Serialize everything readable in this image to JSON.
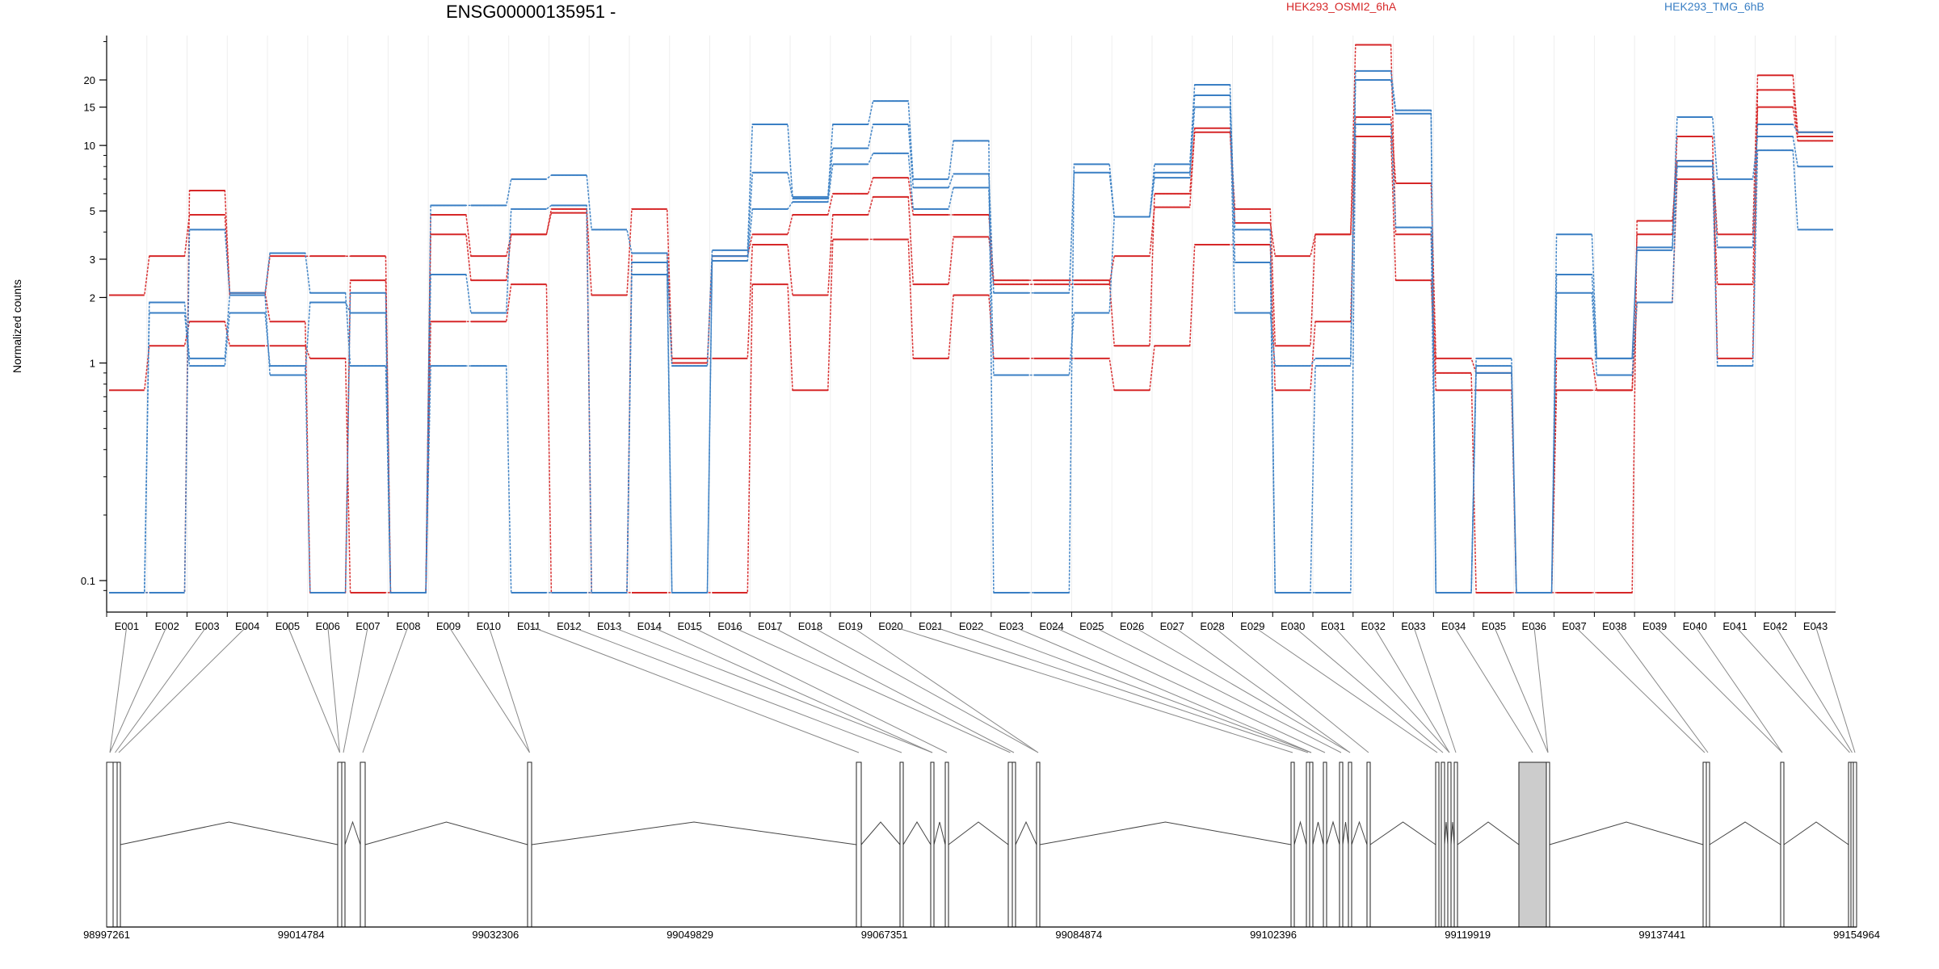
{
  "chart_data": {
    "type": "line",
    "title": "ENSG00000135951 -",
    "ylabel": "Normalized counts",
    "y_scale": "log",
    "ylim": [
      0.085,
      32
    ],
    "y_ticks": [
      {
        "v": 0.1,
        "label": "0.1"
      },
      {
        "v": 1,
        "label": "1"
      },
      {
        "v": 2,
        "label": "2"
      },
      {
        "v": 3,
        "label": "3"
      },
      {
        "v": 5,
        "label": "5"
      },
      {
        "v": 10,
        "label": "10"
      },
      {
        "v": 15,
        "label": "15"
      },
      {
        "v": 20,
        "label": "20"
      }
    ],
    "grid": true,
    "legend_position": "top",
    "groups": [
      {
        "name": "HEK293_OSMI2_6hA",
        "color": "#d62728"
      },
      {
        "name": "HEK293_TMG_6hB",
        "color": "#3a7fc4"
      }
    ],
    "categories": [
      "E001",
      "E002",
      "E003",
      "E004",
      "E005",
      "E006",
      "E007",
      "E008",
      "E009",
      "E010",
      "E011",
      "E012",
      "E013",
      "E014",
      "E015",
      "E016",
      "E017",
      "E018",
      "E019",
      "E020",
      "E021",
      "E022",
      "E023",
      "E024",
      "E025",
      "E026",
      "E027",
      "E028",
      "E029",
      "E030",
      "E031",
      "E032",
      "E033",
      "E034",
      "E035",
      "E036",
      "E037",
      "E038",
      "E039",
      "E040",
      "E041",
      "E042",
      "E043"
    ],
    "series": [
      {
        "group": 0,
        "values": [
          0.75,
          1.2,
          1.55,
          1.2,
          1.2,
          1.05,
          0.088,
          0.088,
          1.55,
          1.55,
          2.3,
          0.088,
          0.088,
          0.088,
          0.088,
          0.088,
          2.3,
          0.75,
          3.7,
          3.7,
          1.05,
          2.05,
          1.05,
          1.05,
          1.05,
          0.75,
          1.2,
          3.5,
          3.5,
          0.75,
          1.55,
          11,
          2.4,
          0.75,
          0.75,
          0.088,
          0.75,
          0.75,
          1.9,
          7,
          2.3,
          15,
          10.5
        ]
      },
      {
        "group": 0,
        "values": [
          2.05,
          3.1,
          4.8,
          2.05,
          3.1,
          3.1,
          3.1,
          0.088,
          4.8,
          3.1,
          3.9,
          5.1,
          2.05,
          5.1,
          1.05,
          1.05,
          3.5,
          2.05,
          4.8,
          5.8,
          2.3,
          3.8,
          2.3,
          2.3,
          2.3,
          3.1,
          5.2,
          11.5,
          4.4,
          3.1,
          3.9,
          13.5,
          6.7,
          1.05,
          0.9,
          0.088,
          1.05,
          0.75,
          3.9,
          11,
          1.05,
          18,
          11
        ]
      },
      {
        "group": 0,
        "values": [
          0.088,
          0.088,
          6.2,
          2.1,
          1.55,
          0.088,
          2.4,
          0.088,
          3.9,
          2.4,
          3.9,
          4.9,
          0.088,
          3.2,
          1,
          3.1,
          3.9,
          4.8,
          6,
          7.1,
          4.8,
          4.8,
          2.4,
          2.4,
          2.4,
          1.2,
          6,
          12,
          5.1,
          1.2,
          3.9,
          29,
          3.9,
          0.9,
          0.088,
          0.088,
          0.088,
          0.088,
          4.5,
          8.5,
          3.9,
          21,
          11.5
        ]
      },
      {
        "group": 1,
        "values": [
          0.088,
          1.9,
          1.05,
          2.05,
          0.88,
          1.9,
          1.7,
          0.088,
          2.55,
          1.7,
          5.1,
          5.3,
          0.088,
          2.55,
          0.088,
          2.95,
          5.1,
          5.5,
          8.2,
          9.2,
          5.1,
          6.4,
          0.88,
          0.88,
          1.7,
          4.7,
          7.1,
          15,
          1.7,
          0.97,
          1.05,
          20,
          14,
          0.088,
          0.9,
          0.088,
          2.1,
          0.88,
          1.9,
          8,
          0.97,
          9.5,
          4.1
        ]
      },
      {
        "group": 1,
        "values": [
          0.088,
          1.7,
          0.97,
          1.7,
          0.97,
          0.088,
          2.1,
          0.088,
          0.97,
          0.97,
          0.088,
          0.088,
          0.088,
          2.9,
          0.088,
          3.1,
          7.5,
          5.7,
          9.7,
          12.5,
          6.4,
          7.4,
          2.1,
          2.1,
          7.5,
          4.7,
          7.5,
          17,
          4.1,
          0.088,
          0.97,
          22,
          14.5,
          0.088,
          1.05,
          0.088,
          2.55,
          1.05,
          3.3,
          8.5,
          3.4,
          12.5,
          11.5
        ]
      },
      {
        "group": 1,
        "values": [
          0.088,
          0.088,
          4.1,
          2.1,
          3.2,
          2.1,
          0.97,
          0.088,
          5.3,
          5.3,
          7,
          7.3,
          4.1,
          3.2,
          0.97,
          3.3,
          12.5,
          5.8,
          12.5,
          16,
          7,
          10.5,
          0.088,
          0.088,
          8.2,
          4.7,
          8.2,
          19,
          2.9,
          0.088,
          0.088,
          12.5,
          4.2,
          0.088,
          0.97,
          0.088,
          3.9,
          1.05,
          3.4,
          13.5,
          7,
          11,
          8
        ]
      }
    ],
    "gene_model": {
      "x_ticks": [
        "98997261",
        "99014784",
        "99032306",
        "99049829",
        "99067351",
        "99084874",
        "99102396",
        "99119919",
        "99137441",
        "99154964"
      ]
    }
  }
}
